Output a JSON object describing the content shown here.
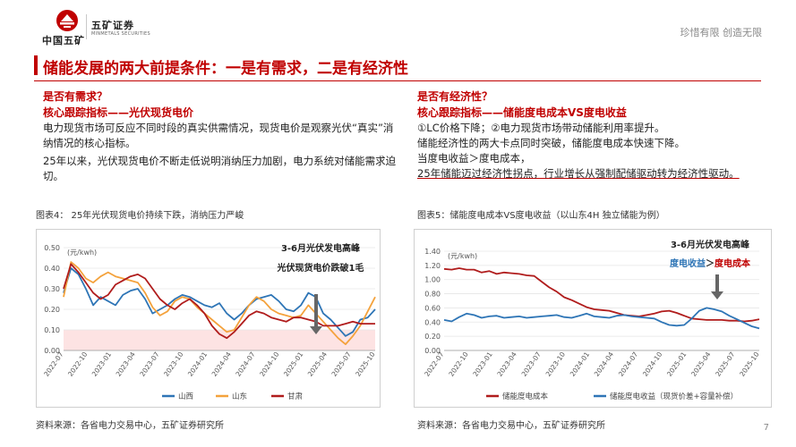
{
  "header": {
    "logo_text": "中国五矿",
    "brand_cn": "五矿证券",
    "brand_en": "MINMETALS SECURITIES",
    "slogan": "珍惜有限 创造无限"
  },
  "title": "储能发展的两大前提条件：一是有需求，二是有经济性",
  "left": {
    "question": "是否有需求？",
    "indicator": "核心跟踪指标——光伏现货电价",
    "para1": "电力现货市场可反应不同时段的真实供需情况，现货电价是观察光伏“真实”消纳情况的核心指标。",
    "para2": "25年以来，光伏现货电价不断走低说明消纳压力加剧，电力系统对储能需求迫切。"
  },
  "right": {
    "question": "是否有经济性？",
    "indicator": "核心跟踪指标——储能度电成本VS度电收益",
    "line1": "①LC价格下降；②电力现货市场带动储能利用率提升。",
    "line2": "储能经济性的两大卡点同时突破，储能度电成本快速下降。",
    "line3": "当度电收益＞度电成本，",
    "line4": "25年储能迈过经济性拐点，行业增长从强制配储驱动转为经济性驱动。"
  },
  "colors": {
    "accent": "#c00000",
    "blue": "#2e75b6",
    "orange": "#f4a23c",
    "darkred": "#b01c1c",
    "band": "#fde3e3"
  },
  "chart_data": [
    {
      "type": "line",
      "title": "图表4： 25年光伏现货电价持续下跌，消纳压力严峻",
      "unit": "(元/kwh)",
      "ylim": [
        0,
        0.5
      ],
      "yticks": [
        "0.00",
        "0.10",
        "0.20",
        "0.30",
        "0.40",
        "0.50"
      ],
      "xticks": [
        "2022-07",
        "2022-10",
        "2023-01",
        "2023-04",
        "2023-07",
        "2023-10",
        "2024-01",
        "2024-04",
        "2024-07",
        "2024-10",
        "2025-01",
        "2025-04",
        "2025-07",
        "2025-10"
      ],
      "highlight_band": [
        0,
        0.1
      ],
      "annotation1": "3-6月光伏发电高峰",
      "annotation2": "光伏现货电价跌破1毛",
      "legend": [
        "山西",
        "山东",
        "甘肃"
      ],
      "series": [
        {
          "name": "山西",
          "values": [
            0.28,
            0.4,
            0.37,
            0.3,
            0.22,
            0.26,
            0.24,
            0.22,
            0.27,
            0.29,
            0.3,
            0.25,
            0.18,
            0.2,
            0.22,
            0.25,
            0.27,
            0.26,
            0.24,
            0.22,
            0.21,
            0.23,
            0.18,
            0.15,
            0.18,
            0.22,
            0.25,
            0.26,
            0.27,
            0.24,
            0.2,
            0.19,
            0.22,
            0.28,
            0.26,
            0.18,
            0.15,
            0.11,
            0.07,
            0.09,
            0.15,
            0.16,
            0.2
          ]
        },
        {
          "name": "山东",
          "values": [
            0.26,
            0.43,
            0.4,
            0.35,
            0.33,
            0.36,
            0.38,
            0.36,
            0.35,
            0.34,
            0.33,
            0.28,
            0.21,
            0.17,
            0.19,
            0.24,
            0.26,
            0.25,
            0.21,
            0.18,
            0.15,
            0.12,
            0.09,
            0.1,
            0.16,
            0.22,
            0.26,
            0.24,
            0.2,
            0.18,
            0.17,
            0.16,
            0.17,
            0.22,
            0.18,
            0.14,
            0.1,
            0.06,
            0.03,
            0.07,
            0.12,
            0.19,
            0.26
          ]
        },
        {
          "name": "甘肃",
          "values": [
            0.3,
            0.42,
            0.38,
            0.33,
            0.28,
            0.25,
            0.27,
            0.32,
            0.34,
            0.36,
            0.37,
            0.35,
            0.3,
            0.25,
            0.22,
            0.2,
            0.23,
            0.25,
            0.22,
            0.18,
            0.12,
            0.08,
            0.06,
            0.09,
            0.13,
            0.17,
            0.19,
            0.18,
            0.16,
            0.15,
            0.14,
            0.16,
            0.16,
            0.15,
            0.14,
            0.12,
            0.12,
            0.12,
            0.13,
            0.14,
            0.13,
            0.13,
            0.13
          ]
        }
      ]
    },
    {
      "type": "line",
      "title": "图表5：储能度电成本VS度电收益（以山东4H 独立储能为例）",
      "unit": "(元/kwh)",
      "ylim": [
        0,
        1.4
      ],
      "yticks": [
        "0.00",
        "0.20",
        "0.40",
        "0.60",
        "0.80",
        "1.00",
        "1.20",
        "1.40"
      ],
      "xticks": [
        "2022-07",
        "2022-10",
        "2023-01",
        "2023-04",
        "2023-07",
        "2023-10",
        "2024-01",
        "2024-04",
        "2024-07",
        "2024-10",
        "2025-01",
        "2025-04",
        "2025-07",
        "2025-10"
      ],
      "annotation1": "3-6月光伏发电高峰",
      "annotation2a": "度电收益",
      "annotation2b": "＞",
      "annotation2c": "度电成本",
      "legend": [
        "储能度电成本",
        "储能度电收益（现货价差+容量补偿）"
      ],
      "series": [
        {
          "name": "储能度电成本",
          "values": [
            1.15,
            1.14,
            1.16,
            1.14,
            1.14,
            1.1,
            1.12,
            1.08,
            1.1,
            1.09,
            1.08,
            1.06,
            1.05,
            0.97,
            0.89,
            0.83,
            0.75,
            0.71,
            0.66,
            0.61,
            0.58,
            0.57,
            0.56,
            0.53,
            0.5,
            0.49,
            0.48,
            0.5,
            0.52,
            0.55,
            0.56,
            0.53,
            0.49,
            0.45,
            0.44,
            0.43,
            0.43,
            0.43,
            0.42,
            0.42,
            0.41,
            0.42,
            0.44
          ]
        },
        {
          "name": "储能度电收益（现货价差+容量补偿）",
          "values": [
            0.43,
            0.41,
            0.47,
            0.52,
            0.5,
            0.46,
            0.48,
            0.49,
            0.46,
            0.47,
            0.48,
            0.46,
            0.47,
            0.48,
            0.49,
            0.5,
            0.47,
            0.46,
            0.49,
            0.52,
            0.48,
            0.47,
            0.46,
            0.49,
            0.5,
            0.48,
            0.47,
            0.46,
            0.45,
            0.4,
            0.36,
            0.35,
            0.36,
            0.45,
            0.56,
            0.6,
            0.58,
            0.55,
            0.49,
            0.44,
            0.39,
            0.34,
            0.31
          ]
        }
      ]
    }
  ]
}
